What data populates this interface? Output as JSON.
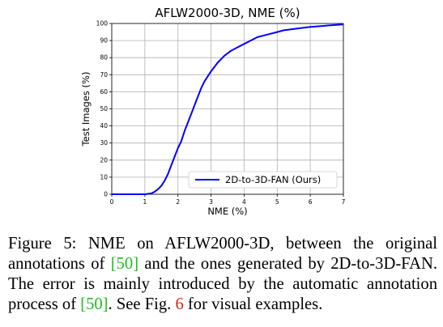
{
  "chart_data": {
    "type": "line",
    "title": "AFLW2000-3D, NME (%)",
    "xlabel": "NME (%)",
    "ylabel": "Test Images (%)",
    "xlim": [
      0,
      7
    ],
    "ylim": [
      0,
      100
    ],
    "xticks": [
      "0",
      "1",
      "2",
      "3",
      "4",
      "5",
      "6",
      "7"
    ],
    "yticks": [
      "0",
      "10",
      "20",
      "30",
      "40",
      "50",
      "60",
      "70",
      "80",
      "90",
      "100"
    ],
    "grid": true,
    "legend_position": "lower-right",
    "series": [
      {
        "name": "2D-to-3D-FAN (Ours)",
        "color": "#0000ff",
        "x": [
          0,
          1.0,
          1.2,
          1.3,
          1.4,
          1.5,
          1.6,
          1.7,
          1.8,
          1.9,
          2.0,
          2.1,
          2.2,
          2.3,
          2.4,
          2.5,
          2.6,
          2.7,
          2.8,
          2.9,
          3.0,
          3.2,
          3.4,
          3.6,
          3.8,
          4.0,
          4.2,
          4.4,
          4.6,
          4.8,
          5.0,
          5.2,
          5.4,
          5.6,
          5.8,
          6.0,
          6.2,
          6.4,
          6.6,
          6.8,
          7.0
        ],
        "y": [
          0,
          0,
          0.5,
          1.5,
          3,
          5,
          8,
          12,
          17,
          22,
          27,
          31,
          37,
          42,
          47,
          52,
          57,
          62,
          66,
          69,
          72,
          77,
          81,
          84,
          86,
          88,
          90,
          92,
          93,
          94,
          95,
          96,
          96.5,
          97,
          97.5,
          98,
          98.3,
          98.6,
          98.9,
          99.2,
          99.5
        ]
      }
    ]
  },
  "caption": {
    "part1": "Figure 5:  NME on AFLW2000-3D, between the original annotations of ",
    "cite1": "[50]",
    "part2": " and the ones generated by 2D-to-3D-FAN. The error is mainly introduced by the automatic annotation process of ",
    "cite2": "[50]",
    "part3": ". See Fig. ",
    "fig_ref": "6",
    "part4": " for visual examples."
  }
}
